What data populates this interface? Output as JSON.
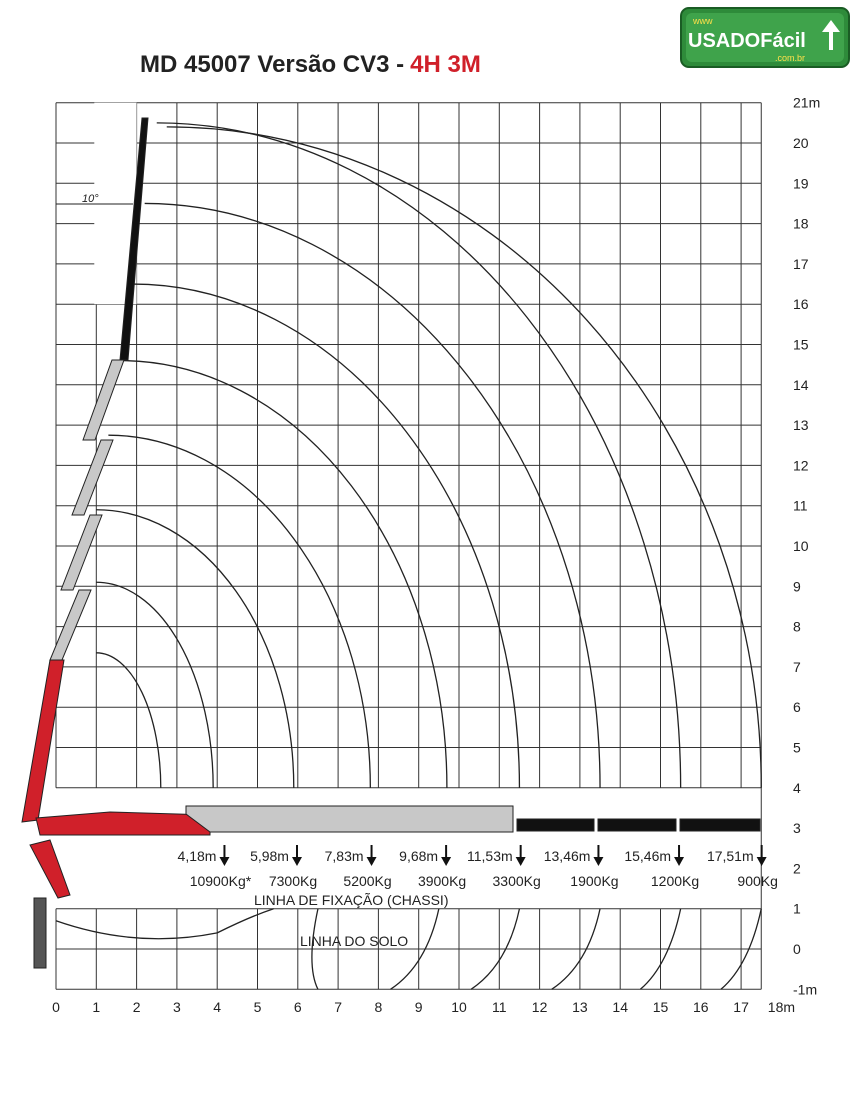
{
  "header": {
    "title": "MD 45007 Versão CV3 -",
    "title_highlight": "4H 3M"
  },
  "logo": {
    "prefix": "www",
    "name": "USADOFácil",
    "suffix": ".com.br"
  },
  "x_axis": {
    "ticks": [
      0,
      1,
      2,
      3,
      4,
      5,
      6,
      7,
      8,
      9,
      10,
      11,
      12,
      13,
      14,
      15,
      16,
      17,
      {
        "value": 18,
        "label": "18m"
      }
    ]
  },
  "y_axis": {
    "ticks": [
      {
        "value": 21,
        "label": "21m"
      },
      20,
      19,
      18,
      17,
      16,
      15,
      14,
      13,
      12,
      11,
      10,
      9,
      8,
      7,
      6,
      5,
      4,
      3,
      2,
      1,
      0,
      {
        "value": -1,
        "label": "-1m"
      }
    ]
  },
  "angle_label": "10°",
  "reaches": [
    {
      "value": 4.18,
      "label": "4,18m",
      "load": "10900Kg*"
    },
    {
      "value": 5.98,
      "label": "5,98m",
      "load": "7300Kg"
    },
    {
      "value": 7.83,
      "label": "7,83m",
      "load": "5200Kg"
    },
    {
      "value": 9.68,
      "label": "9,68m",
      "load": "3900Kg"
    },
    {
      "value": 11.53,
      "label": "11,53m",
      "load": "3300Kg"
    },
    {
      "value": 13.46,
      "label": "13,46m",
      "load": "1900Kg"
    },
    {
      "value": 15.46,
      "label": "15,46m",
      "load": "1200Kg"
    },
    {
      "value": 17.51,
      "label": "17,51m",
      "load": "900Kg"
    }
  ],
  "fixation_line": "LINHA DE FIXAÇÃO (CHASSI)",
  "ground_line": "LINHA DO SOLO"
}
